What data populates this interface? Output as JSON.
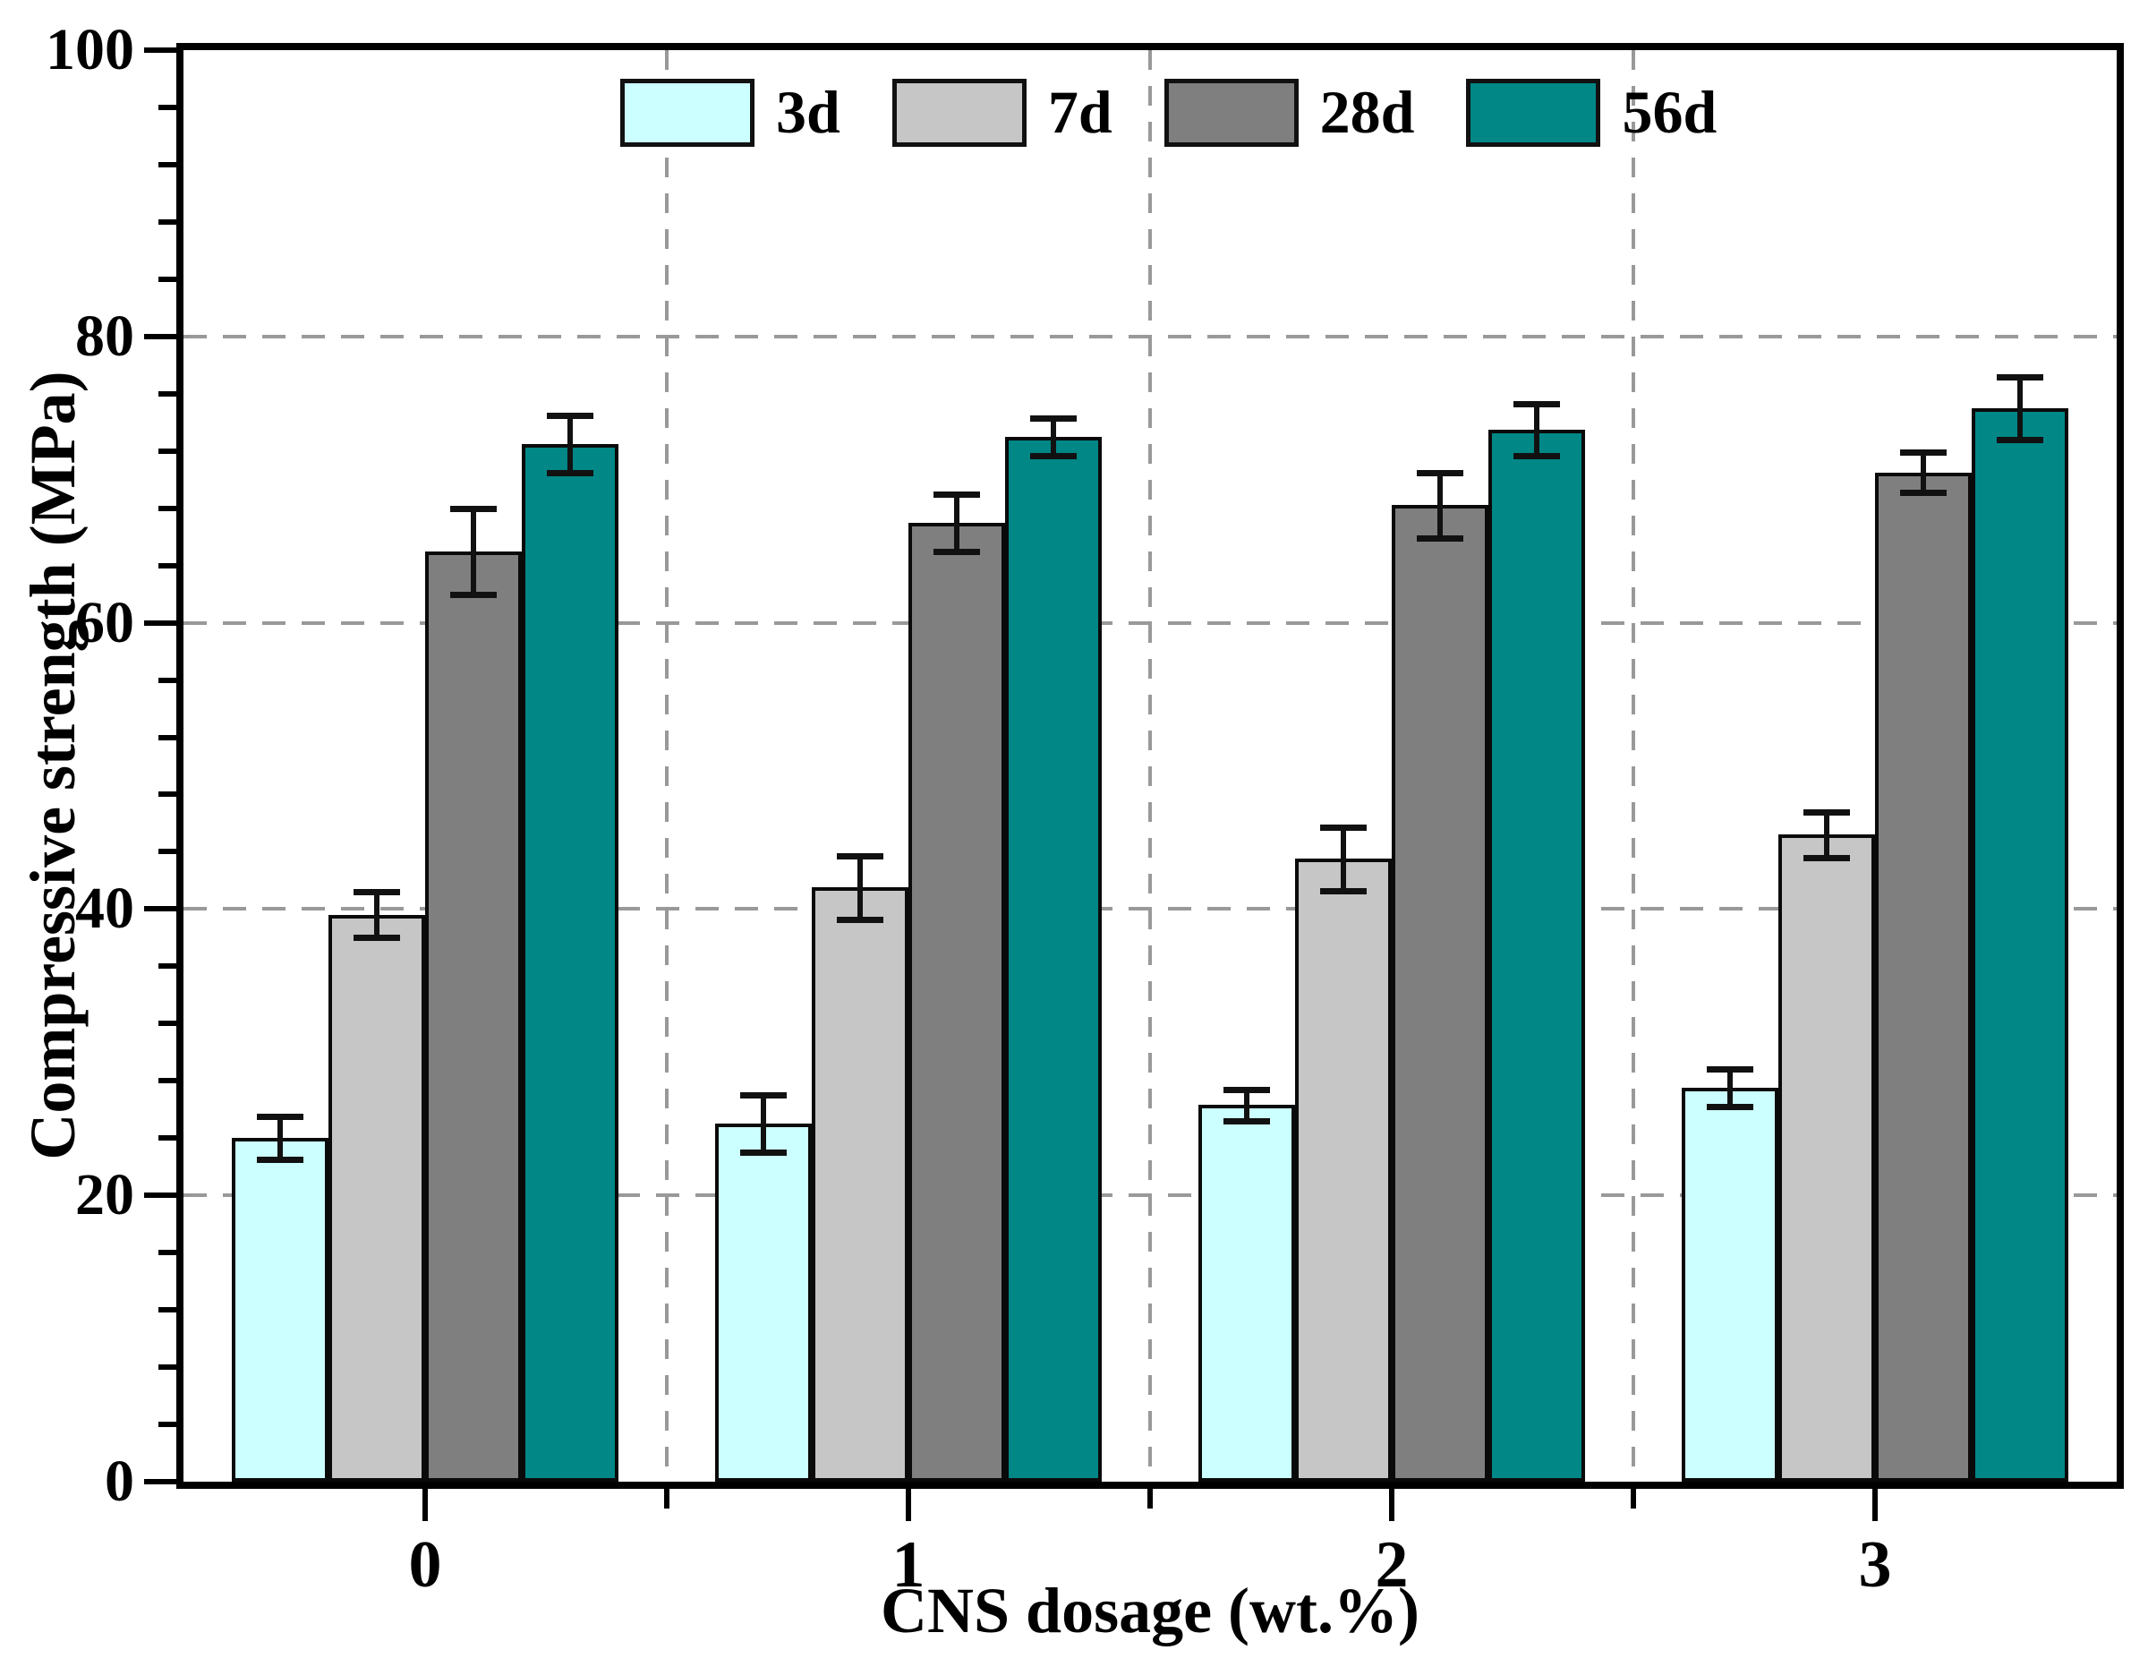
{
  "figure": {
    "background": "#ffffff",
    "axis_color": "#000000",
    "gridline_color": "#999999"
  },
  "chart_data": {
    "type": "bar",
    "title": "",
    "xlabel": "CNS dosage (wt.%)",
    "ylabel": "Compressive strength (MPa)",
    "ylim": [
      0,
      100
    ],
    "y_major_step": 20,
    "y_minor_step": 4,
    "y_tick_labels": [
      "0",
      "20",
      "40",
      "60",
      "80",
      "100"
    ],
    "grid": {
      "y_gridlines_at": [
        20,
        40,
        60,
        80
      ],
      "x_gridlines_at_group_boundaries": true,
      "style": "dashed"
    },
    "legend_position": "top-inside",
    "categories": [
      "0",
      "1",
      "2",
      "3"
    ],
    "series": [
      {
        "name": "3d",
        "color": "#ccffff",
        "values": [
          24.0,
          25.0,
          26.3,
          27.5
        ],
        "errors": [
          1.5,
          2.0,
          1.1,
          1.3
        ]
      },
      {
        "name": "7d",
        "color": "#c6c6c6",
        "values": [
          39.6,
          41.5,
          43.5,
          45.2
        ],
        "errors": [
          1.6,
          2.2,
          2.2,
          1.6
        ]
      },
      {
        "name": "28d",
        "color": "#7f7f7f",
        "values": [
          65.0,
          67.0,
          68.2,
          70.5
        ],
        "errors": [
          3.0,
          2.0,
          2.3,
          1.4
        ]
      },
      {
        "name": "56d",
        "color": "#008786",
        "values": [
          72.5,
          73.0,
          73.5,
          75.0
        ],
        "errors": [
          2.0,
          1.3,
          1.8,
          2.2
        ]
      }
    ]
  }
}
